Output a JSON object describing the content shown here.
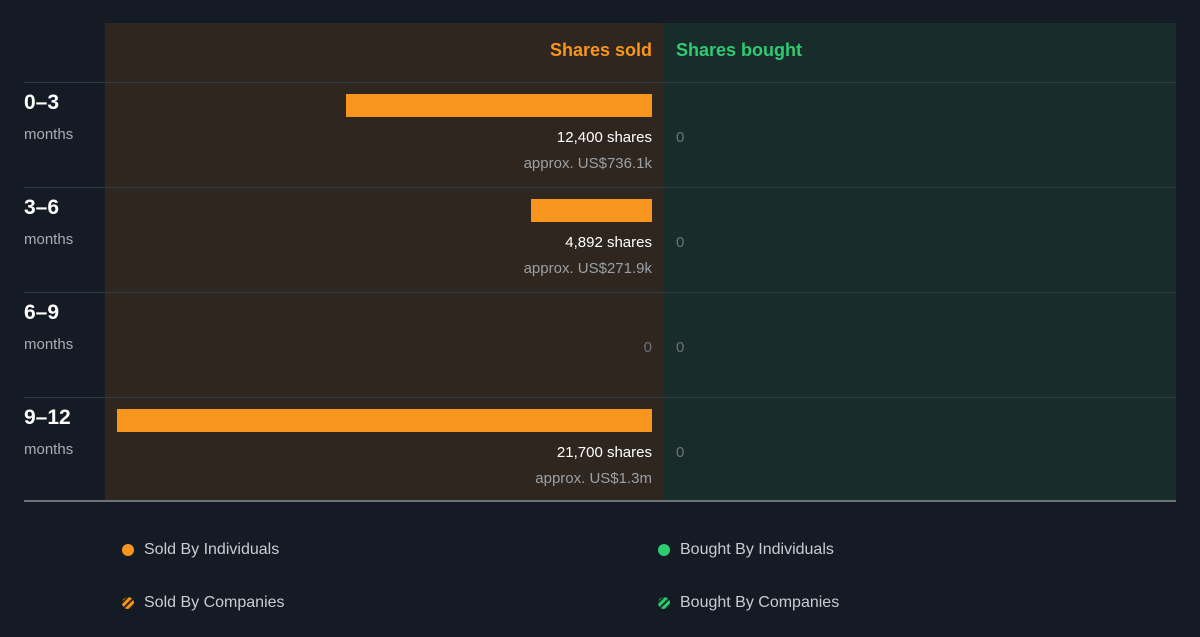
{
  "headers": {
    "sold": "Shares sold",
    "bought": "Shares bought"
  },
  "chart_data": {
    "type": "bar",
    "orientation": "horizontal",
    "categories": [
      "0–3 months",
      "3–6 months",
      "6–9 months",
      "9–12 months"
    ],
    "xlim": [
      0,
      21700
    ],
    "series": [
      {
        "name": "Shares sold",
        "values": [
          12400,
          4892,
          0,
          21700
        ]
      },
      {
        "name": "Shares bought",
        "values": [
          0,
          0,
          0,
          0
        ]
      }
    ]
  },
  "rows": [
    {
      "period": "0–3",
      "unit": "months",
      "sold_shares": 12400,
      "sold_label": "12,400 shares",
      "sold_approx": "approx. US$736.1k",
      "bought": "0"
    },
    {
      "period": "3–6",
      "unit": "months",
      "sold_shares": 4892,
      "sold_label": "4,892 shares",
      "sold_approx": "approx. US$271.9k",
      "bought": "0"
    },
    {
      "period": "6–9",
      "unit": "months",
      "sold_shares": 0,
      "sold_label": "0",
      "sold_approx": "",
      "bought": "0"
    },
    {
      "period": "9–12",
      "unit": "months",
      "sold_shares": 21700,
      "sold_label": "21,700 shares",
      "sold_approx": "approx. US$1.3m",
      "bought": "0"
    }
  ],
  "legend": {
    "sold_individuals": "Sold By Individuals",
    "bought_individuals": "Bought By Individuals",
    "sold_companies": "Sold By Companies",
    "bought_companies": "Bought By Companies"
  },
  "colors": {
    "sold": "#f7951d",
    "bought": "#2ecc71",
    "sold_panel": "#2f2620",
    "bought_panel": "#192c2c",
    "background": "#151b24"
  }
}
